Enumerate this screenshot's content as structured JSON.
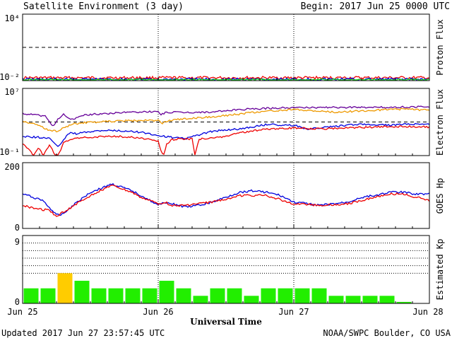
{
  "header": {
    "title": "Satellite Environment (3 day)",
    "begin": "Begin:  2017 Jun 25 0000 UTC"
  },
  "footer": {
    "updated": "Updated 2017 Jun 27 23:57:45 UTC",
    "credit": "NOAA/SWPC Boulder, CO USA",
    "xlabel": "Universal Time"
  },
  "x_ticks": [
    "Jun 25",
    "Jun 26",
    "Jun 27",
    "Jun 28"
  ],
  "colors": {
    "red": "#ee0000",
    "blue": "#0000dd",
    "green": "#22dd22",
    "purple": "#660099",
    "orange": "#ee9900",
    "kp_normal": "#22ee00",
    "kp_elevated": "#ffcc00"
  },
  "chart_data": [
    {
      "type": "line",
      "ylabel": "Proton Flux",
      "yscale": "log",
      "ylim": [
        0.01,
        10000
      ],
      "ytick_labels": [
        "10⁴",
        "10⁻²"
      ],
      "threshold": 10,
      "x_days": [
        0,
        3
      ],
      "series": [
        {
          "color": "red",
          "x": [
            0,
            3
          ],
          "y": [
            0.018,
            0.018
          ]
        },
        {
          "color": "blue",
          "x": [
            0,
            3
          ],
          "y": [
            0.013,
            0.013
          ]
        },
        {
          "color": "green",
          "x": [
            0,
            3
          ],
          "y": [
            0.011,
            0.011
          ]
        }
      ]
    },
    {
      "type": "line",
      "ylabel": "Electron Flux",
      "yscale": "log",
      "ylim": [
        0.1,
        10000000
      ],
      "ytick_labels": [
        "10⁷",
        "10⁻¹"
      ],
      "threshold": 1000,
      "series": [
        {
          "color": "purple",
          "x": [
            0,
            0.17,
            0.22,
            0.26,
            0.3,
            0.35,
            0.4,
            0.45,
            0.5,
            0.6,
            0.8,
            1.0,
            1.02,
            1.06,
            1.1,
            1.2,
            1.4,
            1.6,
            1.9,
            2.2,
            2.5,
            2.8,
            3.0
          ],
          "y": [
            10000,
            5000,
            300,
            2000,
            8000,
            2000,
            3000,
            6000,
            8000,
            10000,
            15000,
            18000,
            7000,
            15000,
            14000,
            14000,
            15000,
            30000,
            50000,
            55000,
            55000,
            60000,
            65000
          ]
        },
        {
          "color": "orange",
          "x": [
            0,
            0.1,
            0.2,
            0.26,
            0.3,
            0.38,
            0.45,
            0.55,
            0.7,
            0.9,
            1.0,
            1.03,
            1.1,
            1.3,
            1.5,
            1.8,
            2.0,
            2.3,
            2.6,
            2.8,
            3.0
          ],
          "y": [
            1200,
            500,
            100,
            80,
            200,
            600,
            800,
            1000,
            1300,
            1600,
            1500,
            700,
            1800,
            3000,
            6000,
            20000,
            30000,
            15000,
            25000,
            35000,
            25000
          ]
        },
        {
          "color": "blue",
          "x": [
            0,
            0.2,
            0.26,
            0.3,
            0.35,
            0.4,
            0.5,
            0.6,
            0.7,
            0.8,
            0.9,
            1.0,
            1.1,
            1.2,
            1.3,
            1.4,
            1.6,
            1.8,
            2.0,
            2.1,
            2.3,
            2.5,
            2.7,
            2.9,
            3.0
          ],
          "y": [
            20,
            12,
            1,
            8,
            60,
            40,
            70,
            100,
            90,
            80,
            50,
            25,
            15,
            10,
            30,
            80,
            150,
            500,
            400,
            150,
            300,
            600,
            400,
            600,
            500
          ]
        },
        {
          "color": "red",
          "x": [
            0,
            0.05,
            0.08,
            0.12,
            0.15,
            0.2,
            0.24,
            0.26,
            0.28,
            0.3,
            0.35,
            0.4,
            0.5,
            0.6,
            0.7,
            0.8,
            0.9,
            1.0,
            1.02,
            1.04,
            1.06,
            1.1,
            1.2,
            1.25,
            1.27,
            1.3,
            1.4,
            1.5,
            1.6,
            1.8,
            2.0,
            2.2,
            2.4,
            2.6,
            2.8,
            3.0
          ],
          "y": [
            3,
            0.5,
            0.1,
            1,
            0.1,
            2,
            0.1,
            0.1,
            0.5,
            3,
            8,
            12,
            15,
            18,
            20,
            15,
            10,
            5,
            0.3,
            0.1,
            2,
            8,
            10,
            10,
            0.1,
            10,
            12,
            20,
            50,
            150,
            200,
            150,
            200,
            250,
            300,
            250
          ]
        }
      ]
    },
    {
      "type": "line",
      "ylabel": "GOES Hp",
      "ylim": [
        0,
        200
      ],
      "ytick_labels": [
        "200",
        "0"
      ],
      "series": [
        {
          "color": "blue",
          "x": [
            0,
            0.15,
            0.25,
            0.3,
            0.4,
            0.5,
            0.6,
            0.65,
            0.7,
            0.8,
            0.9,
            1.0,
            1.05,
            1.1,
            1.2,
            1.3,
            1.4,
            1.5,
            1.6,
            1.7,
            1.8,
            1.9,
            2.0,
            2.2,
            2.4,
            2.5,
            2.6,
            2.7,
            2.8,
            2.9,
            3.0
          ],
          "y": [
            105,
            85,
            40,
            45,
            80,
            110,
            125,
            135,
            130,
            115,
            95,
            70,
            80,
            75,
            65,
            70,
            80,
            95,
            110,
            115,
            110,
            100,
            80,
            70,
            80,
            95,
            100,
            110,
            110,
            105,
            105
          ]
        },
        {
          "color": "red",
          "x": [
            0,
            0.1,
            0.2,
            0.25,
            0.3,
            0.4,
            0.5,
            0.6,
            0.65,
            0.7,
            0.8,
            0.9,
            1.0,
            1.05,
            1.1,
            1.2,
            1.3,
            1.4,
            1.5,
            1.6,
            1.8,
            2.0,
            2.2,
            2.4,
            2.5,
            2.6,
            2.7,
            2.8,
            2.9,
            3.0
          ],
          "y": [
            70,
            60,
            55,
            35,
            50,
            75,
            100,
            120,
            130,
            125,
            110,
            90,
            75,
            80,
            70,
            70,
            75,
            80,
            90,
            100,
            100,
            75,
            70,
            75,
            85,
            95,
            105,
            105,
            95,
            85
          ]
        }
      ]
    },
    {
      "type": "bar",
      "ylabel": "Estimated Kp",
      "ylim": [
        0,
        9
      ],
      "ytick_labels": [
        "9",
        "0"
      ],
      "gridlines": [
        4,
        5,
        6,
        7,
        8,
        9
      ],
      "values": [
        2,
        2,
        4,
        3,
        2,
        2,
        2,
        2,
        3,
        2,
        1,
        2,
        2,
        1,
        2,
        2,
        2,
        2,
        1,
        1,
        1,
        1,
        0.2,
        0
      ],
      "highlight": [
        2
      ]
    }
  ]
}
